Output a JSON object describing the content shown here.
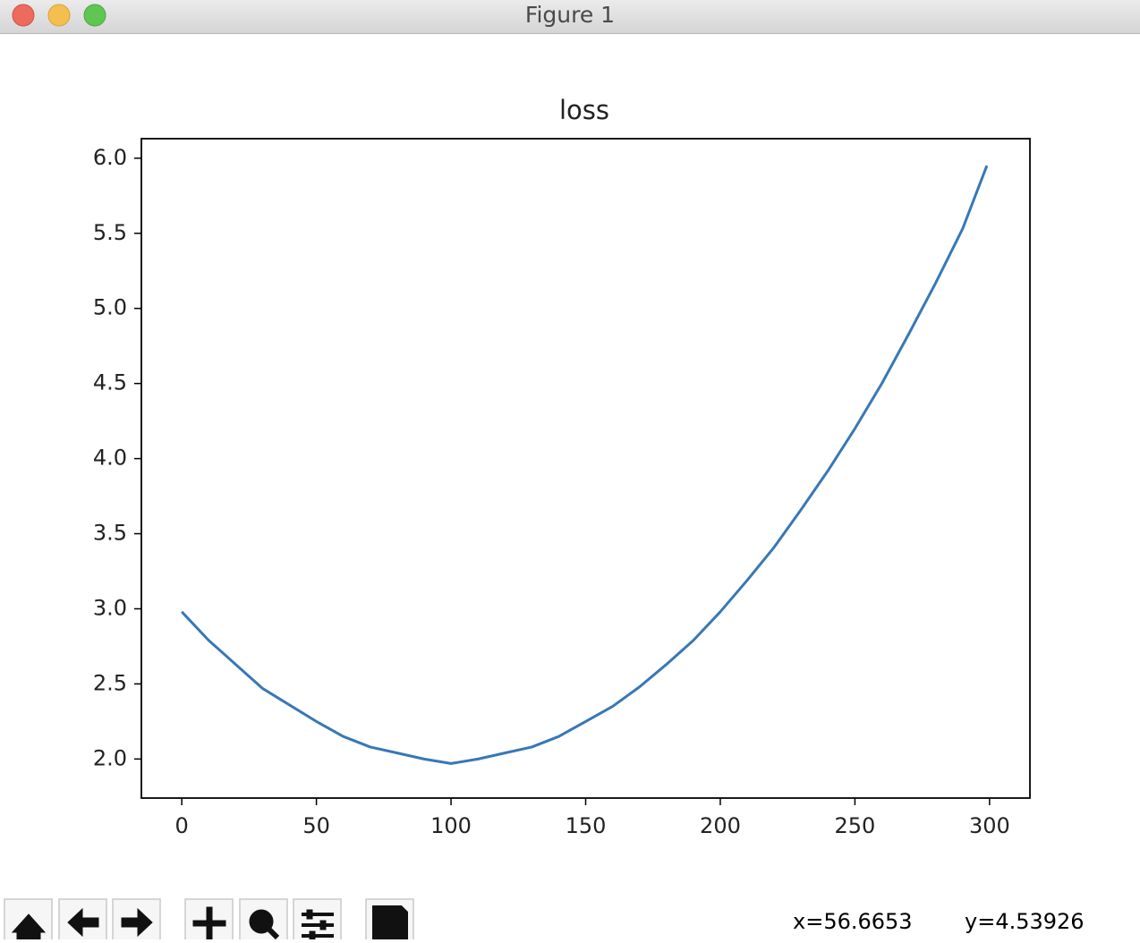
{
  "window": {
    "title": "Figure 1"
  },
  "chart_data": {
    "type": "line",
    "title": "loss",
    "x": [
      0,
      10,
      20,
      30,
      40,
      50,
      60,
      70,
      80,
      90,
      100,
      110,
      120,
      130,
      140,
      150,
      160,
      170,
      180,
      190,
      200,
      210,
      220,
      230,
      240,
      250,
      260,
      270,
      280,
      290,
      299
    ],
    "series": [
      {
        "color": "#3778b6",
        "values": [
          2.98,
          2.79,
          2.63,
          2.47,
          2.36,
          2.25,
          2.15,
          2.08,
          2.04,
          2.0,
          1.97,
          2.0,
          2.04,
          2.08,
          2.15,
          2.25,
          2.35,
          2.48,
          2.63,
          2.79,
          2.98,
          3.19,
          3.41,
          3.66,
          3.92,
          4.2,
          4.5,
          4.83,
          5.17,
          5.53,
          5.95
        ]
      }
    ],
    "xlim": [
      -15,
      315
    ],
    "xticks": [
      0,
      50,
      100,
      150,
      200,
      250,
      300
    ],
    "ylim": [
      1.74,
      6.13
    ],
    "yticks": [
      {
        "value": 2,
        "label": "2.0"
      },
      2.5,
      {
        "value": 3,
        "label": "3.0"
      },
      3.5,
      {
        "value": 4,
        "label": "4.0"
      },
      4.5,
      {
        "value": 5,
        "label": "5.0"
      },
      5.5,
      {
        "value": 6,
        "label": "6.0"
      }
    ]
  },
  "status": {
    "x": "x=56.6653",
    "y": "y=4.53926"
  }
}
